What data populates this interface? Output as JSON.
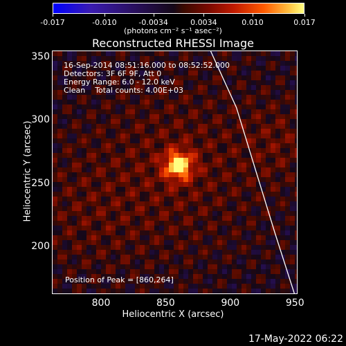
{
  "colorbar": {
    "ticks": [
      "-0.017",
      "-0.010",
      "-0.0034",
      "0.0034",
      "0.010",
      "0.017"
    ],
    "tick_values": [
      -0.017,
      -0.01,
      -0.0034,
      0.0034,
      0.01,
      0.017
    ],
    "unit_label": "(photons cm⁻² s⁻¹ asec⁻²)",
    "range": [
      -0.017,
      0.017
    ]
  },
  "chart_data": {
    "type": "heatmap",
    "title": "Reconstructed RHESSI Image",
    "xlabel": "Heliocentric X (arcsec)",
    "ylabel": "Heliocentric Y (arcsec)",
    "xlim": [
      762,
      952
    ],
    "ylim": [
      162,
      355
    ],
    "xticks": [
      800,
      850,
      900,
      950
    ],
    "yticks": [
      200,
      250,
      300,
      350
    ],
    "grid": false,
    "peak": {
      "x": 860,
      "y": 264
    },
    "limb_curve": [
      [
        885,
        355
      ],
      [
        905,
        310
      ],
      [
        920,
        260
      ],
      [
        935,
        210
      ],
      [
        950,
        162
      ]
    ],
    "annotations": {
      "time_range": "16-Sep-2014 08:51:16.000 to 08:52:52.000",
      "detectors": "Detectors: 3F 6F 9F, Att 0",
      "energy": "Energy Range: 6.0 - 12.0 keV",
      "method": "Clean    Total counts: 4.00E+03",
      "peak_text": "Position of Peak = [860,264]"
    }
  },
  "footer": {
    "date": "17-May-2022 06:22"
  }
}
